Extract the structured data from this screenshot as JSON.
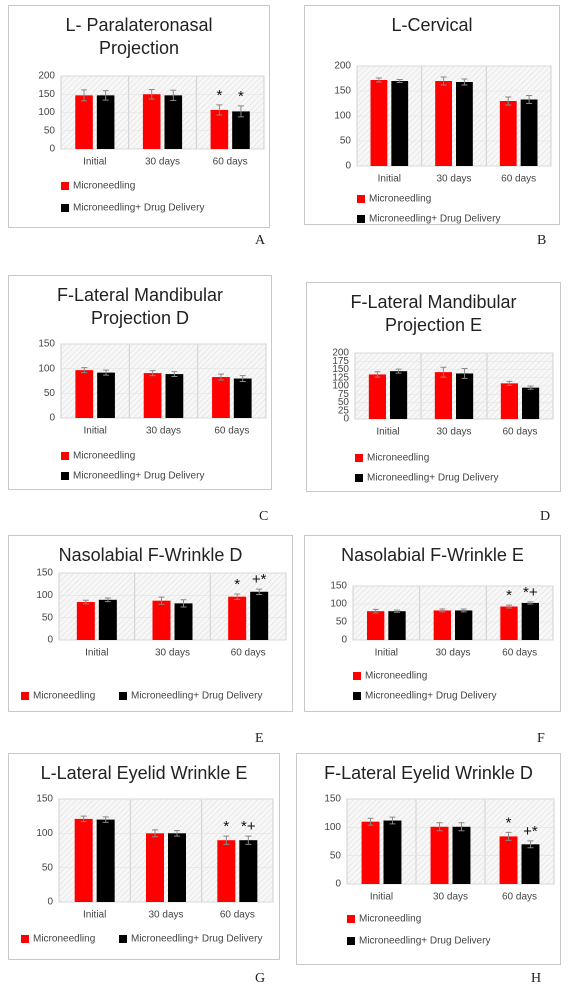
{
  "chart_data": [
    {
      "type": "bar",
      "panel": "A",
      "title": "L- Paralateronasal Projection",
      "categories": [
        "Initial",
        "30 days",
        "60 days"
      ],
      "ylim": [
        0,
        200
      ],
      "yticks": [
        0,
        50,
        100,
        150,
        200
      ],
      "grid": true,
      "series": [
        {
          "name": "Microneedling",
          "color": "#ff0000",
          "values": [
            147,
            150,
            107
          ],
          "errors": [
            15,
            13,
            14
          ],
          "labels": [
            null,
            null,
            "*"
          ]
        },
        {
          "name": "Microneedling+ Drug Delivery",
          "color": "#000000",
          "values": [
            147,
            147,
            103
          ],
          "errors": [
            13,
            14,
            15
          ],
          "labels": [
            null,
            null,
            "*"
          ]
        }
      ]
    },
    {
      "type": "bar",
      "panel": "B",
      "title": "L-Cervical",
      "categories": [
        "Initial",
        "30 days",
        "60 days"
      ],
      "ylim": [
        0,
        200
      ],
      "yticks": [
        0,
        50,
        100,
        150,
        200
      ],
      "grid": true,
      "series": [
        {
          "name": "Microneedling",
          "color": "#ff0000",
          "values": [
            172,
            170,
            130
          ],
          "errors": [
            4,
            8,
            8
          ],
          "labels": [
            null,
            null,
            null
          ]
        },
        {
          "name": "Microneedling+ Drug Delivery",
          "color": "#000000",
          "values": [
            170,
            168,
            133
          ],
          "errors": [
            3,
            6,
            8
          ],
          "labels": [
            null,
            null,
            null
          ]
        }
      ]
    },
    {
      "type": "bar",
      "panel": "C",
      "title": "F-Lateral Mandibular Projection D",
      "categories": [
        "Initial",
        "30 days",
        "60 days"
      ],
      "ylim": [
        0,
        150
      ],
      "yticks": [
        0,
        50,
        100,
        150
      ],
      "grid": true,
      "series": [
        {
          "name": "Microneedling",
          "color": "#ff0000",
          "values": [
            97,
            91,
            83
          ],
          "errors": [
            5,
            5,
            6
          ],
          "labels": [
            null,
            null,
            null
          ]
        },
        {
          "name": "Microneedling+ Drug Delivery",
          "color": "#000000",
          "values": [
            92,
            89,
            80
          ],
          "errors": [
            5,
            5,
            6
          ],
          "labels": [
            null,
            null,
            null
          ]
        }
      ]
    },
    {
      "type": "bar",
      "panel": "D",
      "title": "F-Lateral Mandibular Projection E",
      "categories": [
        "Initial",
        "30 days",
        "60 days"
      ],
      "ylim": [
        0,
        200
      ],
      "yticks": [
        0,
        25,
        50,
        75,
        100,
        125,
        150,
        175,
        200
      ],
      "grid": true,
      "series": [
        {
          "name": "Microneedling",
          "color": "#ff0000",
          "values": [
            135,
            142,
            108
          ],
          "errors": [
            8,
            15,
            6
          ],
          "labels": [
            null,
            null,
            null
          ]
        },
        {
          "name": "Microneedling+ Drug Delivery",
          "color": "#000000",
          "values": [
            145,
            138,
            95
          ],
          "errors": [
            6,
            15,
            5
          ],
          "labels": [
            null,
            null,
            null
          ]
        }
      ]
    },
    {
      "type": "bar",
      "panel": "E",
      "title": "Nasolabial F-Wrinkle D",
      "categories": [
        "Initial",
        "30 days",
        "60 days"
      ],
      "ylim": [
        0,
        150
      ],
      "yticks": [
        0,
        50,
        100,
        150
      ],
      "grid": true,
      "series": [
        {
          "name": "Microneedling",
          "color": "#ff0000",
          "values": [
            85,
            88,
            97
          ],
          "errors": [
            4,
            8,
            6
          ],
          "labels": [
            null,
            null,
            "*"
          ]
        },
        {
          "name": "Microneedling+ Drug Delivery",
          "color": "#000000",
          "values": [
            90,
            82,
            108
          ],
          "errors": [
            4,
            8,
            6
          ],
          "labels": [
            null,
            null,
            "+*"
          ]
        }
      ]
    },
    {
      "type": "bar",
      "panel": "F",
      "title": "Nasolabial F-Wrinkle E",
      "categories": [
        "Initial",
        "30 days",
        "60 days"
      ],
      "ylim": [
        0,
        150
      ],
      "yticks": [
        0,
        50,
        100,
        150
      ],
      "grid": true,
      "series": [
        {
          "name": "Microneedling",
          "color": "#ff0000",
          "values": [
            80,
            82,
            93
          ],
          "errors": [
            5,
            4,
            4
          ],
          "labels": [
            null,
            null,
            "*"
          ]
        },
        {
          "name": "Microneedling+ Drug Delivery",
          "color": "#000000",
          "values": [
            80,
            82,
            103
          ],
          "errors": [
            3,
            4,
            3
          ],
          "labels": [
            null,
            null,
            "*+"
          ]
        }
      ]
    },
    {
      "type": "bar",
      "panel": "G",
      "title": "L-Lateral Eyelid Wrinkle E",
      "categories": [
        "Initial",
        "30 days",
        "60 days"
      ],
      "ylim": [
        0,
        150
      ],
      "yticks": [
        0,
        50,
        100,
        150
      ],
      "grid": true,
      "series": [
        {
          "name": "Microneedling",
          "color": "#ff0000",
          "values": [
            121,
            100,
            90
          ],
          "errors": [
            4,
            5,
            6
          ],
          "labels": [
            null,
            null,
            "*"
          ]
        },
        {
          "name": "Microneedling+ Drug Delivery",
          "color": "#000000",
          "values": [
            120,
            100,
            90
          ],
          "errors": [
            4,
            4,
            6
          ],
          "labels": [
            null,
            null,
            "*+"
          ]
        }
      ]
    },
    {
      "type": "bar",
      "panel": "H",
      "title": "F-Lateral Eyelid Wrinkle D",
      "categories": [
        "Initial",
        "30 days",
        "60 days"
      ],
      "ylim": [
        0,
        150
      ],
      "yticks": [
        0,
        50,
        100,
        150
      ],
      "grid": true,
      "series": [
        {
          "name": "Microneedling",
          "color": "#ff0000",
          "values": [
            110,
            101,
            84
          ],
          "errors": [
            6,
            7,
            7
          ],
          "labels": [
            null,
            null,
            "*"
          ]
        },
        {
          "name": "Microneedling+ Drug Delivery",
          "color": "#000000",
          "values": [
            112,
            101,
            70
          ],
          "errors": [
            6,
            7,
            6
          ],
          "labels": [
            null,
            null,
            "+*"
          ]
        }
      ]
    }
  ]
}
